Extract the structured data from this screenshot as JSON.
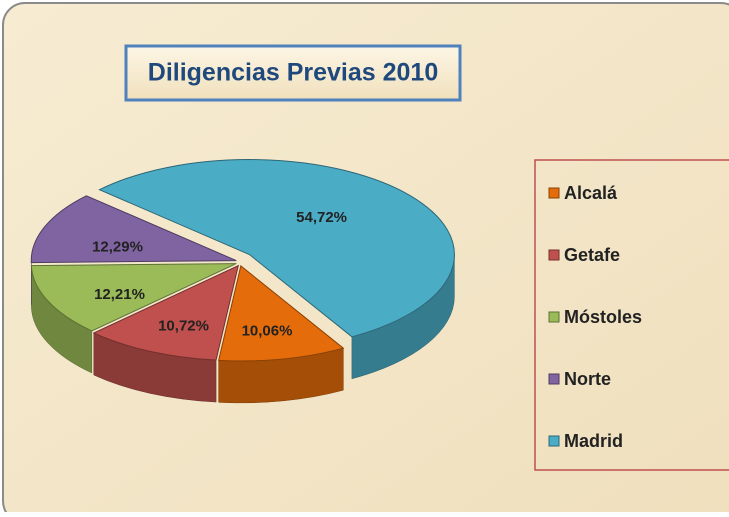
{
  "chart_data": {
    "type": "pie3d",
    "title": "Diligencias Previas 2010",
    "categories": [
      "Alcalá",
      "Getafe",
      "Móstoles",
      "Norte",
      "Madrid"
    ],
    "values": [
      10.06,
      10.72,
      12.21,
      12.29,
      54.72
    ],
    "value_labels": [
      "10,06%",
      "10,72%",
      "12,21%",
      "12,29%",
      "54,72%"
    ],
    "colors": [
      "#e46c0a",
      "#c0504d",
      "#9bbb59",
      "#8064a2",
      "#4bacc6"
    ],
    "legend": "right"
  }
}
